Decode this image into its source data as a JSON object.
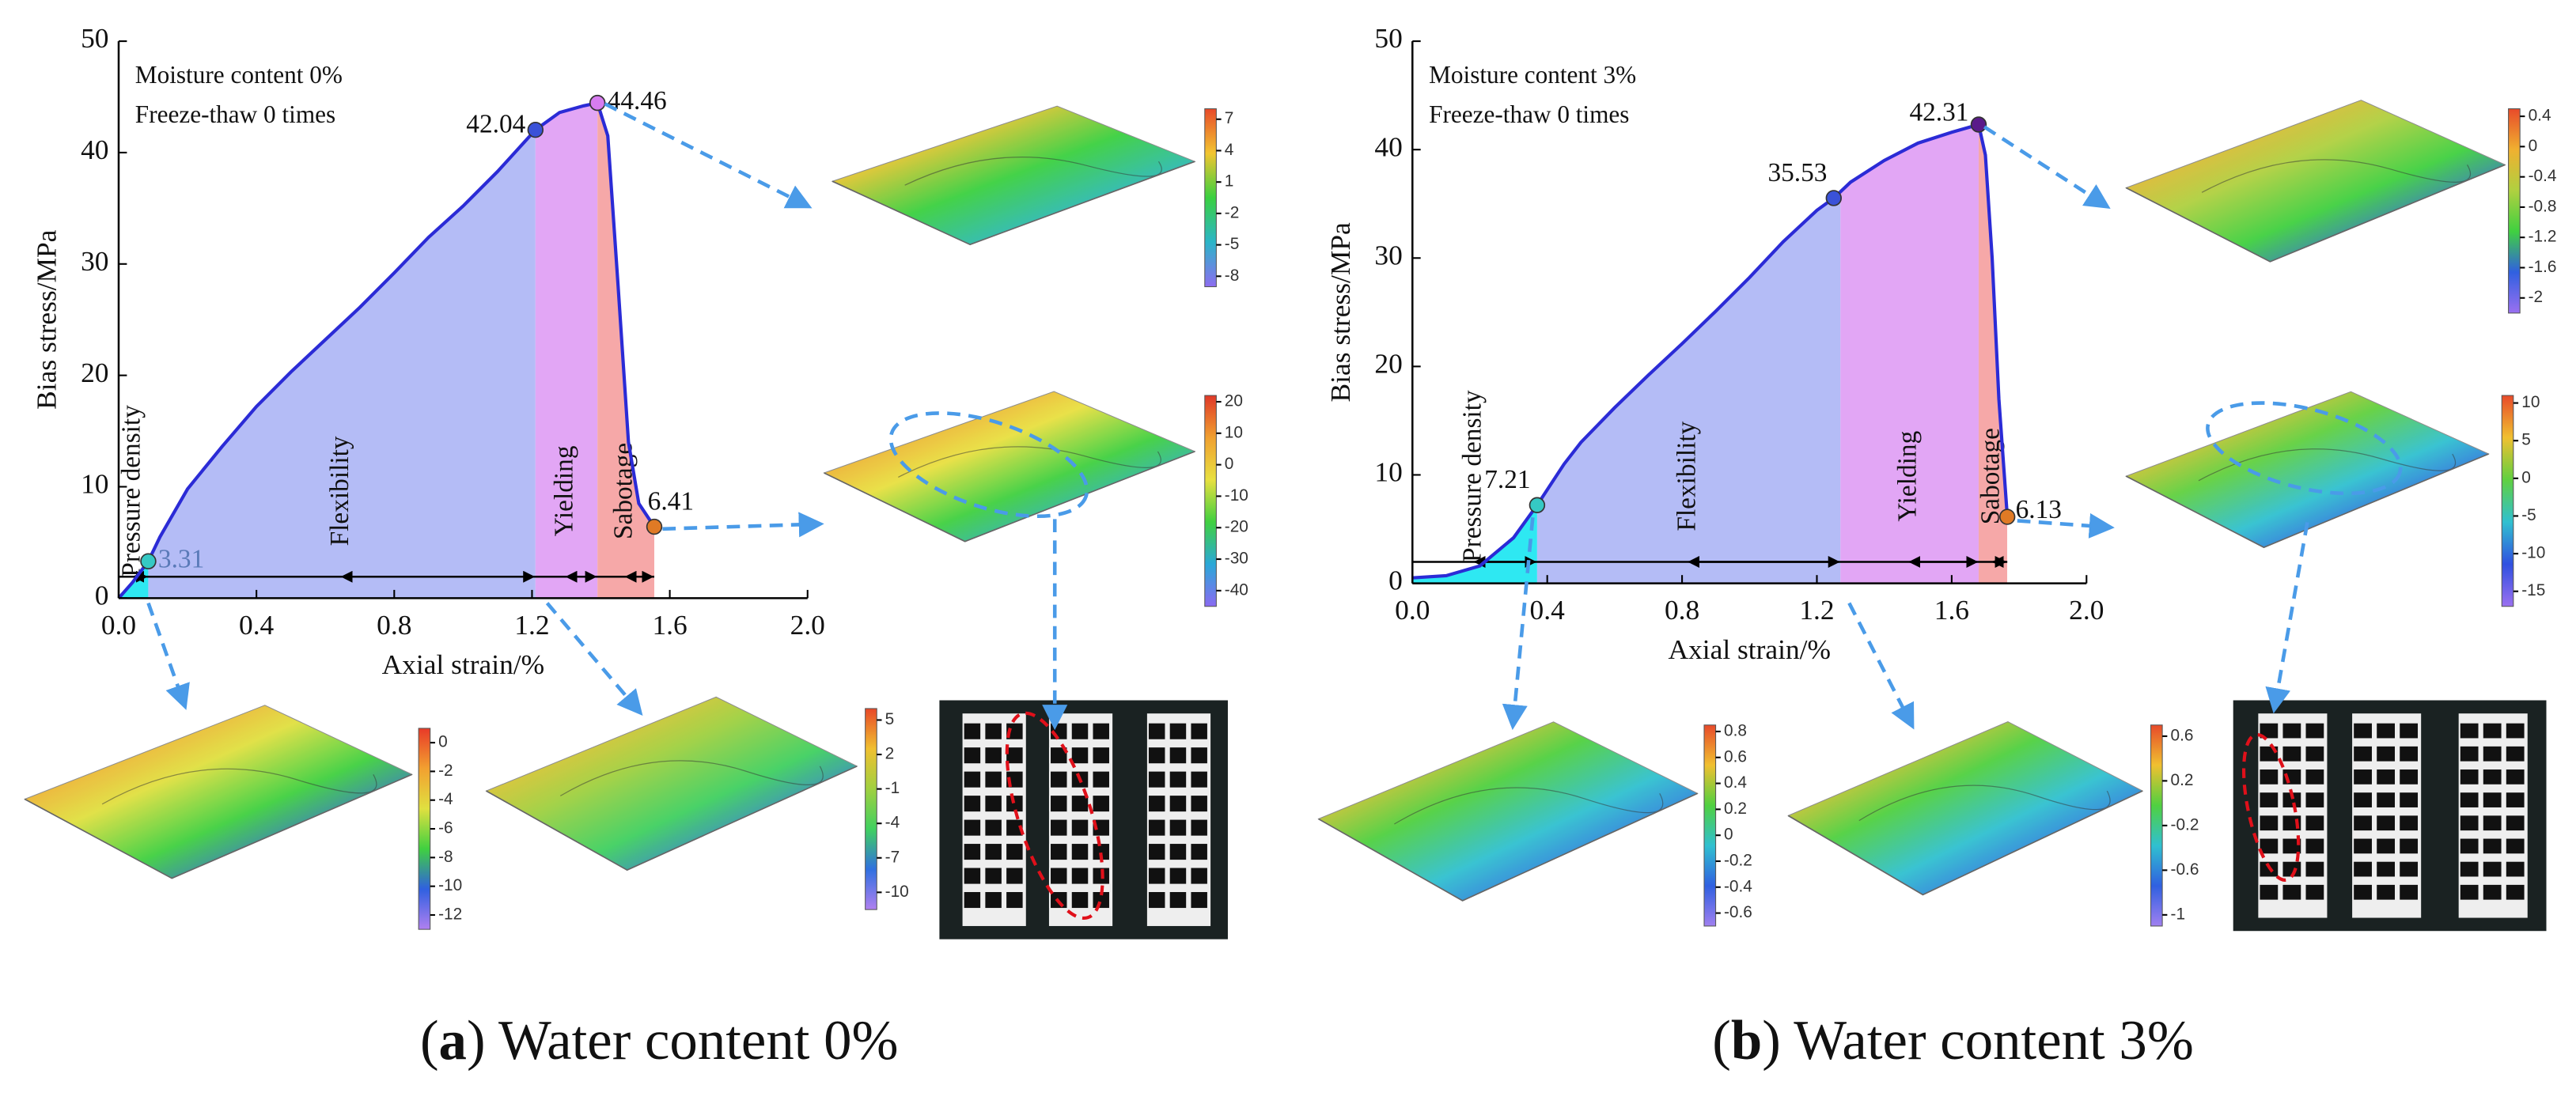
{
  "chart_data": [
    {
      "type": "line",
      "caption_parts": [
        "(",
        "a",
        ") Water content 0%"
      ],
      "xlabel": "Axial strain/%",
      "ylabel": "Bias stress/MPa",
      "xlim": [
        0,
        2.0
      ],
      "xticks": [
        {
          "value": 0,
          "label": "0.0"
        },
        0.4,
        0.8,
        1.2,
        1.6,
        {
          "value": 2,
          "label": "2.0"
        }
      ],
      "ylim": [
        0,
        50
      ],
      "yticks": [
        0,
        10,
        20,
        30,
        40,
        50
      ],
      "annotations": [
        "Moisture content 0%",
        "Freeze-thaw 0 times"
      ],
      "series": [
        {
          "color": "#2b2bd6",
          "x": [
            0,
            0.04,
            0.086,
            0.12,
            0.2,
            0.3,
            0.4,
            0.5,
            0.6,
            0.7,
            0.8,
            0.9,
            1.0,
            1.1,
            1.21,
            1.28,
            1.35,
            1.39,
            1.42,
            1.45,
            1.48,
            1.51,
            1.555
          ],
          "values": [
            0,
            1.4,
            3.31,
            5.5,
            9.8,
            13.6,
            17.2,
            20.3,
            23.2,
            26.1,
            29.2,
            32.4,
            35.2,
            38.3,
            42.04,
            43.6,
            44.2,
            44.46,
            41.5,
            28,
            14,
            8.5,
            6.41
          ]
        }
      ],
      "stages": [
        {
          "label": "Pressure density",
          "range": [
            0,
            0.086
          ],
          "color": "#2ee8f2"
        },
        {
          "label": "Flexibility",
          "range": [
            0.086,
            1.21
          ],
          "color": "#b4bcf6"
        },
        {
          "label": "Yielding",
          "range": [
            1.21,
            1.39
          ],
          "color": "#e2a6f5"
        },
        {
          "label": "Sabotage",
          "range": [
            1.39,
            1.555
          ],
          "color": "#f6a8a8"
        }
      ],
      "points": {
        "x": [
          0.086,
          1.21,
          1.39,
          1.555
        ],
        "values": [
          3.31,
          42.04,
          44.46,
          6.41
        ],
        "colors": [
          "#35c9c4",
          "#3a52d8",
          "#d77cf0",
          "#e07a25"
        ]
      },
      "insets": [
        {
          "clim": [
            -9,
            8
          ],
          "colorbar_ticks": [
            7,
            4,
            1,
            -2,
            -5,
            -8
          ],
          "colors": [
            "#e84a2a",
            "#f2c530",
            "#3ad040",
            "#2bb5c8",
            "#8d6df0"
          ]
        },
        {
          "clim": [
            -45,
            22
          ],
          "colorbar_ticks": [
            20,
            10,
            0,
            -10,
            -20,
            -30,
            -40
          ],
          "colors": [
            "#e03828",
            "#f0a030",
            "#e8e040",
            "#40d040",
            "#2aa8d8",
            "#8a6af2"
          ]
        },
        {
          "clim": [
            -13,
            1
          ],
          "colorbar_ticks": [
            0,
            -2,
            -4,
            -6,
            -8,
            -10,
            -12
          ],
          "colors": [
            "#e83a28",
            "#f2a030",
            "#e0e040",
            "#40d040",
            "#3060e0",
            "#b080f0"
          ]
        },
        {
          "clim": [
            -11.5,
            6
          ],
          "colorbar_ticks": [
            5,
            2,
            -1,
            -4,
            -7,
            -10
          ],
          "colors": [
            "#e84828",
            "#f0c030",
            "#a0d040",
            "#40d060",
            "#3070e0",
            "#b080f0"
          ]
        }
      ]
    },
    {
      "type": "line",
      "caption_parts": [
        "(",
        "b",
        ") Water content 3%"
      ],
      "xlabel": "Axial strain/%",
      "ylabel": "Bias stress/MPa",
      "xlim": [
        0,
        2.0
      ],
      "xticks": [
        {
          "value": 0,
          "label": "0.0"
        },
        0.4,
        0.8,
        1.2,
        1.6,
        {
          "value": 2,
          "label": "2.0"
        }
      ],
      "ylim": [
        0,
        50
      ],
      "yticks": [
        0,
        10,
        20,
        30,
        40,
        50
      ],
      "annotations": [
        "Moisture content 3%",
        "Freeze-thaw 0 times"
      ],
      "series": [
        {
          "color": "#2b2bd6",
          "x": [
            0,
            0.1,
            0.2,
            0.3,
            0.37,
            0.45,
            0.5,
            0.6,
            0.7,
            0.8,
            0.9,
            1.0,
            1.1,
            1.2,
            1.25,
            1.3,
            1.4,
            1.5,
            1.6,
            1.68,
            1.7,
            1.72,
            1.74,
            1.765
          ],
          "values": [
            0.5,
            0.7,
            1.6,
            4.2,
            7.21,
            11,
            13,
            16.2,
            19.2,
            22.1,
            25.1,
            28.2,
            31.5,
            34.4,
            35.53,
            37,
            39,
            40.6,
            41.6,
            42.31,
            39.5,
            30,
            17,
            6.13
          ]
        }
      ],
      "stages": [
        {
          "label": "Pressure density",
          "range": [
            0,
            0.37
          ],
          "color": "#2ee8f2"
        },
        {
          "label": "Flexibility",
          "range": [
            0.37,
            1.27
          ],
          "color": "#b4bcf6"
        },
        {
          "label": "Yielding",
          "range": [
            1.27,
            1.68
          ],
          "color": "#e2a6f5"
        },
        {
          "label": "Sabotage",
          "range": [
            1.68,
            1.765
          ],
          "color": "#f6a8a8"
        }
      ],
      "points": {
        "x": [
          0.37,
          1.25,
          1.68,
          1.765
        ],
        "values": [
          7.21,
          35.53,
          42.31,
          6.13
        ],
        "colors": [
          "#35c9c4",
          "#3a52d8",
          "#5a1a8a",
          "#e07a25"
        ]
      },
      "insets": [
        {
          "clim": [
            -2.2,
            0.5
          ],
          "colorbar_ticks": [
            0.4,
            0,
            -0.4,
            -0.8,
            -1.2,
            -1.6,
            -2
          ],
          "colors": [
            "#e84a2a",
            "#f0b030",
            "#b0d040",
            "#40d040",
            "#3060e0",
            "#9a70f0"
          ]
        },
        {
          "clim": [
            -17,
            11
          ],
          "colorbar_ticks": [
            10,
            5,
            0,
            -5,
            -10,
            -15
          ],
          "colors": [
            "#e84a2a",
            "#f0c030",
            "#60d040",
            "#30c0d0",
            "#3050e0",
            "#9a70f0"
          ]
        },
        {
          "clim": [
            -0.7,
            0.85
          ],
          "colorbar_ticks": [
            0.8,
            0.6,
            0.4,
            0.2,
            0,
            -0.2,
            -0.4,
            -0.6
          ],
          "colors": [
            "#e84a2a",
            "#f0c030",
            "#50d040",
            "#30c0d0",
            "#3060e0",
            "#a080f0"
          ]
        },
        {
          "clim": [
            -1.1,
            0.7
          ],
          "colorbar_ticks": [
            0.6,
            0.2,
            -0.2,
            -0.6,
            -1
          ],
          "colors": [
            "#e84a2a",
            "#f0c030",
            "#50d040",
            "#30c0d0",
            "#3060e0",
            "#a080f0"
          ]
        }
      ]
    }
  ]
}
